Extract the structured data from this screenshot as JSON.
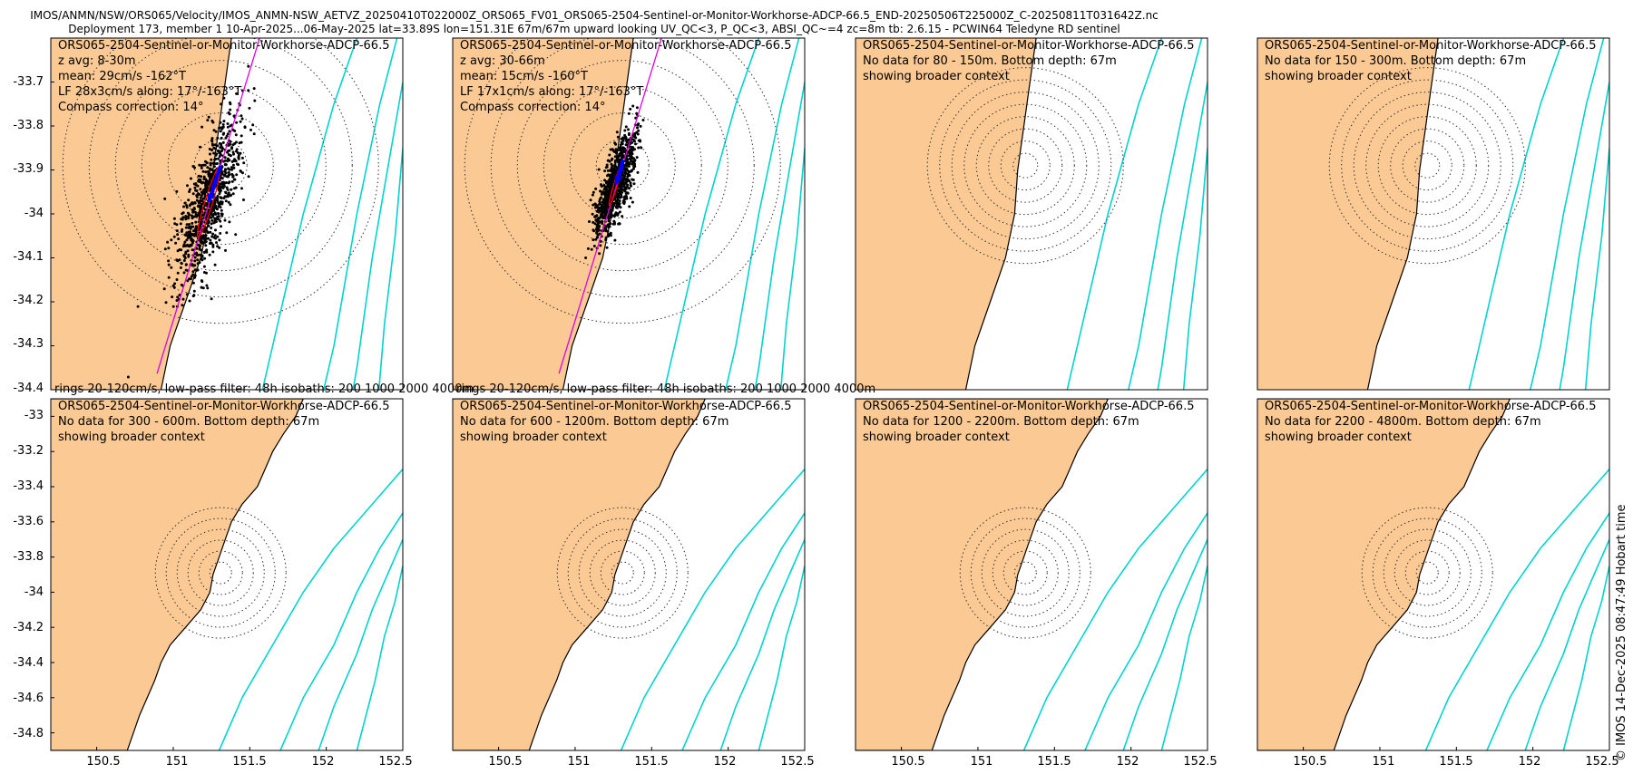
{
  "header": {
    "line1": "IMOS/ANMN/NSW/ORS065/Velocity/IMOS_ANMN-NSW_AETVZ_20250410T022000Z_ORS065_FV01_ORS065-2504-Sentinel-or-Monitor-Workhorse-ADCP-66.5_END-20250506T225000Z_C-20250811T031642Z.nc",
    "line2": "Deployment 173, member 1 10-Apr-2025...06-May-2025 lat=33.89S lon=151.31E 67m/67m upward looking UV_QC<3, P_QC<3, ABSI_QC~=4 zc=8m tb: 2.6.15 - PCWIN64 Teledyne RD sentinel"
  },
  "timestamp": "© IMOS 14-Dec-2025 08:47:49 Hobart time",
  "footer_text": "rings 20-120cm/s, low-pass filter: 48h isobaths: 200 1000 2000 4000m",
  "colors": {
    "land": "#fbc994",
    "isobath": "#00d2d2",
    "major_axis": "#e000e0",
    "scatter": "#000000",
    "mean_arrow": "#0000ff",
    "lf_ellipse": "#ff0000"
  },
  "chart_data": {
    "type": "scatter",
    "x_ticks": [
      150.5,
      151,
      151.5,
      152,
      152.5
    ],
    "x_tick_labels": [
      "150.5",
      "151",
      "151.5",
      "152",
      "152.5"
    ],
    "top_row": {
      "ylim": [
        -34.4,
        -33.6
      ],
      "y_ticks": [
        -33.7,
        -33.8,
        -33.9,
        -34,
        -34.1,
        -34.2,
        -34.3,
        -34.4
      ],
      "y_tick_labels": [
        "-33.7",
        "-33.8",
        "-33.9",
        "-34",
        "-34.1",
        "-34.2",
        "-34.3",
        "-34.4"
      ]
    },
    "bottom_row": {
      "ylim": [
        -34.9,
        -32.9
      ],
      "y_ticks": [
        -33,
        -33.2,
        -33.4,
        -33.6,
        -33.8,
        -34,
        -34.2,
        -34.4,
        -34.6,
        -34.8
      ],
      "y_tick_labels": [
        "-33",
        "-33.2",
        "-33.4",
        "-33.6",
        "-33.8",
        "-34",
        "-34.2",
        "-34.4",
        "-34.6",
        "-34.8"
      ]
    },
    "mooring": {
      "lon": 151.31,
      "lat": -33.89
    },
    "rings_cm_per_s": [
      20,
      40,
      60,
      80,
      100,
      120
    ],
    "panels": [
      {
        "title": "ORS065-2504-Sentinel-or-Monitor-Workhorse-ADCP-66.5",
        "lines": [
          "z avg: 8-30m",
          "mean: 29cm/s -162°T",
          "LF 28x3cm/s along: 17°/-163°T",
          "Compass correction: 14°"
        ],
        "has_data": true,
        "mean_speed": 29,
        "mean_dir": -162,
        "lf_major": 28,
        "lf_minor": 3,
        "along_dir": 17,
        "row": "top"
      },
      {
        "title": "ORS065-2504-Sentinel-or-Monitor-Workhorse-ADCP-66.5",
        "lines": [
          "z avg: 30-66m",
          "mean: 15cm/s -160°T",
          "LF 17x1cm/s along: 17°/-163°T",
          "Compass correction: 14°"
        ],
        "has_data": true,
        "mean_speed": 15,
        "mean_dir": -160,
        "lf_major": 17,
        "lf_minor": 1,
        "along_dir": 17,
        "row": "top"
      },
      {
        "title": "ORS065-2504-Sentinel-or-Monitor-Workhorse-ADCP-66.5",
        "lines": [
          "No data for 80 - 150m. Bottom depth: 67m",
          "showing broader context"
        ],
        "has_data": false,
        "row": "top"
      },
      {
        "title": "ORS065-2504-Sentinel-or-Monitor-Workhorse-ADCP-66.5",
        "lines": [
          "No data for 150 - 300m. Bottom depth: 67m",
          "showing broader context"
        ],
        "has_data": false,
        "row": "top"
      },
      {
        "title": "ORS065-2504-Sentinel-or-Monitor-Workhorse-ADCP-66.5",
        "lines": [
          "No data for 300 - 600m. Bottom depth: 67m",
          "showing broader context"
        ],
        "has_data": false,
        "row": "bottom"
      },
      {
        "title": "ORS065-2504-Sentinel-or-Monitor-Workhorse-ADCP-66.5",
        "lines": [
          "No data for 600 - 1200m. Bottom depth: 67m",
          "showing broader context"
        ],
        "has_data": false,
        "row": "bottom"
      },
      {
        "title": "ORS065-2504-Sentinel-or-Monitor-Workhorse-ADCP-66.5",
        "lines": [
          "No data for 1200 - 2200m. Bottom depth: 67m",
          "showing broader context"
        ],
        "has_data": false,
        "row": "bottom"
      },
      {
        "title": "ORS065-2504-Sentinel-or-Monitor-Workhorse-ADCP-66.5",
        "lines": [
          "No data for 2200 - 4800m. Bottom depth: 67m",
          "showing broader context"
        ],
        "has_data": false,
        "row": "bottom"
      }
    ],
    "coastline": [
      [
        151.85,
        -32.9
      ],
      [
        151.8,
        -33.0
      ],
      [
        151.72,
        -33.1
      ],
      [
        151.65,
        -33.2
      ],
      [
        151.6,
        -33.3
      ],
      [
        151.55,
        -33.4
      ],
      [
        151.45,
        -33.5
      ],
      [
        151.38,
        -33.6
      ],
      [
        151.34,
        -33.7
      ],
      [
        151.3,
        -33.8
      ],
      [
        151.26,
        -33.9
      ],
      [
        151.24,
        -34.0
      ],
      [
        151.18,
        -34.1
      ],
      [
        151.08,
        -34.2
      ],
      [
        150.98,
        -34.3
      ],
      [
        150.92,
        -34.4
      ],
      [
        150.88,
        -34.5
      ],
      [
        150.83,
        -34.6
      ],
      [
        150.78,
        -34.7
      ],
      [
        150.74,
        -34.8
      ],
      [
        150.7,
        -34.9
      ]
    ],
    "isobaths": [
      {
        "depth_m": 200,
        "points": [
          [
            152.5,
            -33.3
          ],
          [
            152.3,
            -33.5
          ],
          [
            152.05,
            -33.75
          ],
          [
            151.85,
            -34.0
          ],
          [
            151.65,
            -34.3
          ],
          [
            151.45,
            -34.6
          ],
          [
            151.3,
            -34.9
          ]
        ]
      },
      {
        "depth_m": 1000,
        "points": [
          [
            152.5,
            -33.55
          ],
          [
            152.35,
            -33.75
          ],
          [
            152.2,
            -34.0
          ],
          [
            152.05,
            -34.3
          ],
          [
            151.85,
            -34.6
          ],
          [
            151.7,
            -34.9
          ]
        ]
      },
      {
        "depth_m": 2000,
        "points": [
          [
            152.5,
            -33.7
          ],
          [
            152.4,
            -33.9
          ],
          [
            152.3,
            -34.1
          ],
          [
            152.2,
            -34.35
          ],
          [
            152.05,
            -34.65
          ],
          [
            151.95,
            -34.9
          ]
        ]
      },
      {
        "depth_m": 4000,
        "points": [
          [
            152.5,
            -33.85
          ],
          [
            152.45,
            -34.05
          ],
          [
            152.38,
            -34.25
          ],
          [
            152.32,
            -34.5
          ],
          [
            152.2,
            -34.9
          ]
        ]
      }
    ]
  }
}
